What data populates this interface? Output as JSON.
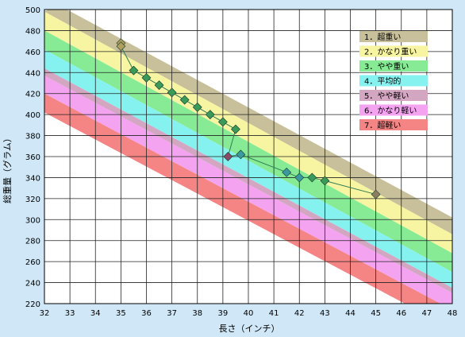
{
  "chart_data": {
    "type": "line",
    "title": "",
    "xlabel": "長さ（インチ）",
    "ylabel": "総重量（グラム）",
    "xlim": [
      32,
      48
    ],
    "ylim": [
      220,
      500
    ],
    "xticks": [
      "32",
      "33",
      "34",
      "35",
      "36",
      "37",
      "38",
      "39",
      "40",
      "41",
      "42",
      "43",
      "44",
      "45",
      "46",
      "47",
      "48"
    ],
    "yticks": [
      "220",
      "240",
      "260",
      "280",
      "300",
      "320",
      "340",
      "360",
      "380",
      "400",
      "420",
      "440",
      "460",
      "480",
      "500"
    ],
    "grid": true,
    "legend_position": "top-right",
    "bands": [
      {
        "name": "1．超重い",
        "color": "#c8c09a",
        "upper": [
          [
            32.5,
            505
          ],
          [
            48,
            302
          ]
        ],
        "lower": [
          [
            32,
            498
          ],
          [
            48,
            286
          ]
        ]
      },
      {
        "name": "2．かなり重い",
        "color": "#f7f4a2",
        "upper": [
          [
            32,
            498
          ],
          [
            48,
            286
          ]
        ],
        "lower": [
          [
            32,
            480
          ],
          [
            48,
            268
          ]
        ]
      },
      {
        "name": "3．やや重い",
        "color": "#86eb94",
        "upper": [
          [
            32,
            480
          ],
          [
            48,
            268
          ]
        ],
        "lower": [
          [
            32,
            462
          ],
          [
            48,
            250
          ]
        ]
      },
      {
        "name": "4．平均的",
        "color": "#86f2f0",
        "upper": [
          [
            32,
            462
          ],
          [
            48,
            250
          ]
        ],
        "lower": [
          [
            32,
            444
          ],
          [
            48,
            235
          ]
        ]
      },
      {
        "name": "5．やや軽い",
        "color": "#d3a6c2",
        "upper": [
          [
            32,
            444
          ],
          [
            48,
            235
          ]
        ],
        "lower": [
          [
            32,
            437
          ],
          [
            48,
            230
          ]
        ]
      },
      {
        "name": "6．かなり軽い",
        "color": "#f4a3f0",
        "upper": [
          [
            32,
            437
          ],
          [
            48,
            230
          ]
        ],
        "lower": [
          [
            32,
            420
          ],
          [
            48,
            214
          ]
        ]
      },
      {
        "name": "7．超軽い",
        "color": "#f58484",
        "upper": [
          [
            32,
            420
          ],
          [
            48,
            214
          ]
        ],
        "lower": [
          [
            32,
            402
          ],
          [
            48,
            196
          ]
        ]
      }
    ],
    "series": [
      {
        "color": "#2f7d52",
        "points": [
          {
            "x": 35.0,
            "y": 468,
            "color": "#b0a060"
          },
          {
            "x": 35.0,
            "y": 465,
            "color": "#b0a060"
          },
          {
            "x": 35.5,
            "y": 442,
            "color": "#3a9a5a"
          },
          {
            "x": 36.0,
            "y": 435,
            "color": "#3a9a5a"
          },
          {
            "x": 36.5,
            "y": 428,
            "color": "#3a9a5a"
          },
          {
            "x": 37.0,
            "y": 421,
            "color": "#3a9a5a"
          },
          {
            "x": 37.5,
            "y": 414,
            "color": "#3a9a5a"
          },
          {
            "x": 38.0,
            "y": 407,
            "color": "#3a9a5a"
          },
          {
            "x": 38.5,
            "y": 400,
            "color": "#3a9a5a"
          },
          {
            "x": 39.0,
            "y": 393,
            "color": "#3a9a5a"
          },
          {
            "x": 39.5,
            "y": 386,
            "color": "#3a9a5a"
          },
          {
            "x": 39.2,
            "y": 360,
            "color": "#8a4a6a"
          },
          {
            "x": 39.7,
            "y": 362,
            "color": "#3a9aa0"
          },
          {
            "x": 41.5,
            "y": 345,
            "color": "#3a9aa0"
          },
          {
            "x": 42.0,
            "y": 340,
            "color": "#3a9aa0"
          },
          {
            "x": 42.5,
            "y": 340,
            "color": "#3a9a5a"
          },
          {
            "x": 43.0,
            "y": 337,
            "color": "#3a9a5a"
          },
          {
            "x": 45.0,
            "y": 324,
            "color": "#8a8060"
          }
        ]
      }
    ]
  }
}
